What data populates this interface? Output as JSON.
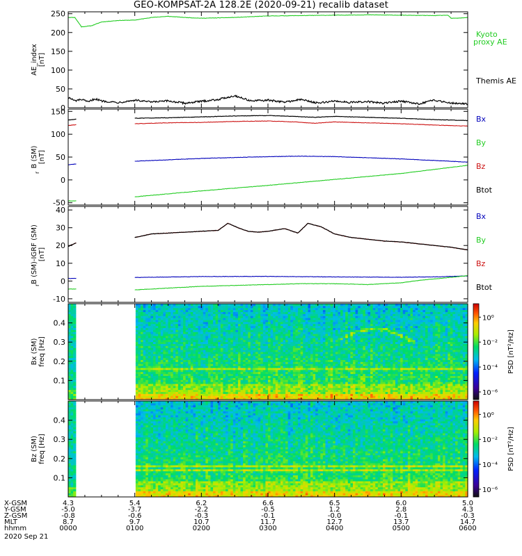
{
  "title": "GEO-KOMPSAT-2A 128.2E (2020-09-21) recalib dataset",
  "colors": {
    "kyoto": "#22cc22",
    "themis": "#000000",
    "bx": "#0000bb",
    "by": "#22cc22",
    "bz": "#cc1111",
    "btot": "#000000"
  },
  "panels": [
    {
      "id": "ae",
      "ylabel_main": "AE_index",
      "ylabel_unit": "[nT]",
      "yticks": [
        0,
        50,
        100,
        150,
        200,
        250
      ],
      "legend": [
        "Kyoto",
        "proxy AE",
        "Themis AE"
      ]
    },
    {
      "id": "bsm",
      "ylabel_main": "B  (SM)",
      "ylabel_sub": "r",
      "ylabel_unit": "[nT]",
      "yticks": [
        -50,
        0,
        50,
        100,
        150
      ],
      "legend": [
        "Bx",
        "By",
        "Bz",
        "Btot"
      ]
    },
    {
      "id": "bigrf",
      "ylabel_main": "B (SM)-IGRF (SM)",
      "ylabel_sub": "r",
      "ylabel_unit": "[nT]",
      "yticks": [
        -10,
        0,
        10,
        20,
        30,
        40
      ],
      "legend": [
        "Bx",
        "By",
        "Bz",
        "Btot"
      ]
    },
    {
      "id": "bxspec",
      "ylabel_main": "Bx (SM)",
      "ylabel_unit": "freq [Hz]",
      "yticks": [
        0.1,
        0.2,
        0.3,
        0.4
      ],
      "colorbar_label": "PSD [nT²/Hz]",
      "colorbar_ticks": [
        "10⁰",
        "10⁻²",
        "10⁻⁴",
        "10⁻⁶"
      ]
    },
    {
      "id": "bzspec",
      "ylabel_main": "Bz (SM)",
      "ylabel_unit": "freq [Hz]",
      "yticks": [
        0.1,
        0.2,
        0.3,
        0.4
      ],
      "colorbar_label": "PSD [nT²/Hz]",
      "colorbar_ticks": [
        "10⁰",
        "10⁻²",
        "10⁻⁴",
        "10⁻⁶"
      ]
    }
  ],
  "ephemeris": {
    "row_labels": [
      "X-GSM",
      "Y-GSM",
      "Z-GSM",
      "MLT",
      "hhmm"
    ],
    "date": "2020 Sep 21",
    "columns": [
      [
        "4.3",
        "-5.0",
        "-0.8",
        "8.7",
        "0000"
      ],
      [
        "5.4",
        "-3.7",
        "-0.6",
        "9.7",
        "0100"
      ],
      [
        "6.2",
        "-2.2",
        "-0.3",
        "10.7",
        "0200"
      ],
      [
        "6.6",
        "-0.5",
        "-0.1",
        "11.7",
        "0300"
      ],
      [
        "6.5",
        "1.2",
        "-0.0",
        "12.7",
        "0400"
      ],
      [
        "6.0",
        "2.8",
        "-0.1",
        "13.7",
        "0500"
      ],
      [
        "5.0",
        "4.3",
        "-0.3",
        "14.7",
        "0600"
      ]
    ]
  },
  "chart_data": [
    {
      "type": "line",
      "panel": "AE index",
      "x_unit": "hours UT",
      "x_range": [
        0,
        6
      ],
      "ylim": [
        0,
        255
      ],
      "series": [
        {
          "name": "Kyoto proxy AE",
          "x": [
            0,
            0.1,
            0.2,
            0.35,
            0.5,
            0.75,
            1.0,
            1.25,
            1.5,
            1.75,
            2.0,
            2.5,
            3.0,
            3.5,
            4.0,
            4.5,
            5.0,
            5.5,
            5.7,
            5.75,
            5.85,
            6.0
          ],
          "values": [
            240,
            240,
            215,
            218,
            228,
            232,
            233,
            240,
            243,
            240,
            238,
            240,
            244,
            245,
            246,
            247,
            246,
            245,
            246,
            238,
            238,
            240
          ]
        },
        {
          "name": "Themis AE",
          "x": [
            0,
            0.1,
            0.2,
            0.3,
            0.4,
            0.5,
            0.75,
            1.0,
            1.25,
            1.5,
            1.75,
            2.0,
            2.25,
            2.5,
            2.75,
            3.0,
            3.25,
            3.5,
            3.75,
            4.0,
            4.25,
            4.5,
            4.75,
            5.0,
            5.25,
            5.5,
            5.75,
            6.0
          ],
          "values": [
            28,
            18,
            22,
            15,
            24,
            18,
            14,
            20,
            15,
            18,
            12,
            17,
            22,
            32,
            18,
            20,
            15,
            22,
            12,
            18,
            14,
            16,
            12,
            18,
            10,
            20,
            13,
            10
          ]
        }
      ]
    },
    {
      "type": "line",
      "panel": "B (SM) [nT]",
      "x_unit": "hours UT",
      "x_range": [
        0,
        6
      ],
      "ylim": [
        -55,
        155
      ],
      "data_gap_hours": [
        0.12,
        1.0
      ],
      "series": [
        {
          "name": "Bx",
          "x": [
            0.0,
            0.12,
            1.0,
            2.0,
            3.0,
            3.5,
            4.0,
            5.0,
            6.0
          ],
          "values": [
            33,
            35,
            41,
            47,
            51,
            52,
            51,
            46,
            39
          ]
        },
        {
          "name": "By",
          "x": [
            0.0,
            0.12,
            1.0,
            2.0,
            3.0,
            4.0,
            5.0,
            6.0
          ],
          "values": [
            -46,
            -46,
            -37,
            -24,
            -12,
            1,
            14,
            32
          ]
        },
        {
          "name": "Bz",
          "x": [
            0.0,
            0.12,
            1.0,
            1.5,
            2.0,
            2.5,
            3.0,
            3.4,
            3.7,
            4.0,
            4.5,
            5.0,
            5.5,
            6.0
          ],
          "values": [
            119,
            121,
            123,
            125,
            126,
            128,
            129,
            127,
            124,
            127,
            125,
            123,
            120,
            118
          ]
        },
        {
          "name": "Btot",
          "x": [
            0.0,
            0.12,
            1.0,
            1.5,
            2.0,
            2.5,
            3.0,
            3.4,
            3.7,
            4.0,
            4.5,
            5.0,
            5.5,
            6.0
          ],
          "values": [
            131,
            133,
            135,
            136,
            138,
            140,
            141,
            139,
            137,
            139,
            137,
            135,
            132,
            130
          ]
        }
      ]
    },
    {
      "type": "line",
      "panel": "B (SM)-IGRF (SM) [nT]",
      "x_unit": "hours UT",
      "x_range": [
        0,
        6
      ],
      "ylim": [
        -12,
        42
      ],
      "data_gap_hours": [
        0.12,
        1.0
      ],
      "series": [
        {
          "name": "Bx",
          "x": [
            0.0,
            0.12,
            1.0,
            2.0,
            3.0,
            4.0,
            5.0,
            5.6,
            6.0
          ],
          "values": [
            1.5,
            1.5,
            2.0,
            2.5,
            2.6,
            2.3,
            2.1,
            2.4,
            2.9
          ]
        },
        {
          "name": "By",
          "x": [
            0.0,
            0.12,
            1.0,
            1.5,
            2.0,
            2.5,
            3.0,
            3.5,
            4.0,
            4.5,
            5.0,
            5.3,
            5.6,
            6.0
          ],
          "values": [
            -4.5,
            -4.5,
            -5.0,
            -4.0,
            -3.0,
            -2.5,
            -2.0,
            -1.5,
            -1.5,
            -2.0,
            -1.0,
            0.5,
            1.5,
            3.0
          ]
        },
        {
          "name": "Bz",
          "x": [
            0.0,
            0.12,
            1.0,
            1.25,
            1.5,
            1.75,
            2.0,
            2.25,
            2.4,
            2.55,
            2.7,
            2.85,
            3.0,
            3.25,
            3.45,
            3.6,
            3.8,
            4.0,
            4.25,
            4.5,
            4.75,
            5.0,
            5.25,
            5.5,
            5.75,
            6.0
          ],
          "values": [
            19.5,
            21.5,
            24.5,
            26.5,
            27.0,
            27.5,
            28.0,
            28.5,
            32.5,
            30.0,
            28.0,
            27.5,
            28.0,
            29.5,
            27.0,
            32.5,
            30.5,
            26.5,
            24.5,
            23.5,
            22.5,
            22.0,
            21.0,
            20.0,
            19.0,
            17.5
          ]
        },
        {
          "name": "Btot",
          "x": [
            0.0,
            0.12,
            1.0,
            1.25,
            1.5,
            1.75,
            2.0,
            2.25,
            2.4,
            2.55,
            2.7,
            2.85,
            3.0,
            3.25,
            3.45,
            3.6,
            3.8,
            4.0,
            4.25,
            4.5,
            4.75,
            5.0,
            5.25,
            5.5,
            5.75,
            6.0
          ],
          "values": [
            19.5,
            21.5,
            24.5,
            26.5,
            27.0,
            27.5,
            28.0,
            28.5,
            32.5,
            30.0,
            28.0,
            27.5,
            28.0,
            29.5,
            27.0,
            32.5,
            30.5,
            26.5,
            24.5,
            23.5,
            22.5,
            22.0,
            21.0,
            20.0,
            19.0,
            17.5
          ]
        }
      ]
    },
    {
      "type": "heatmap",
      "panel": "Bx (SM) spectrogram",
      "x_unit": "hours UT",
      "x_range": [
        0,
        6
      ],
      "y_unit": "Hz",
      "ylim": [
        0,
        0.5
      ],
      "colorbar": "PSD [nT²/Hz], log scale 10⁻⁶ to 10¹",
      "data_gap_hours": [
        0.12,
        1.0
      ],
      "features": [
        {
          "description": "arc",
          "x_hours": [
            4.0,
            4.6,
            5.2
          ],
          "freq_hz": [
            0.3,
            0.37,
            0.3
          ]
        },
        {
          "description": "line",
          "freq_hz": 0.16
        }
      ]
    },
    {
      "type": "heatmap",
      "panel": "Bz (SM) spectrogram",
      "x_unit": "hours UT",
      "x_range": [
        0,
        6
      ],
      "y_unit": "Hz",
      "ylim": [
        0,
        0.5
      ],
      "colorbar": "PSD [nT²/Hz], log scale 10⁻⁶ to 10¹",
      "data_gap_hours": [
        0.12,
        1.0
      ],
      "features": [
        {
          "description": "line",
          "freq_hz": 0.16
        },
        {
          "description": "line",
          "freq_hz": 0.14
        }
      ]
    }
  ]
}
